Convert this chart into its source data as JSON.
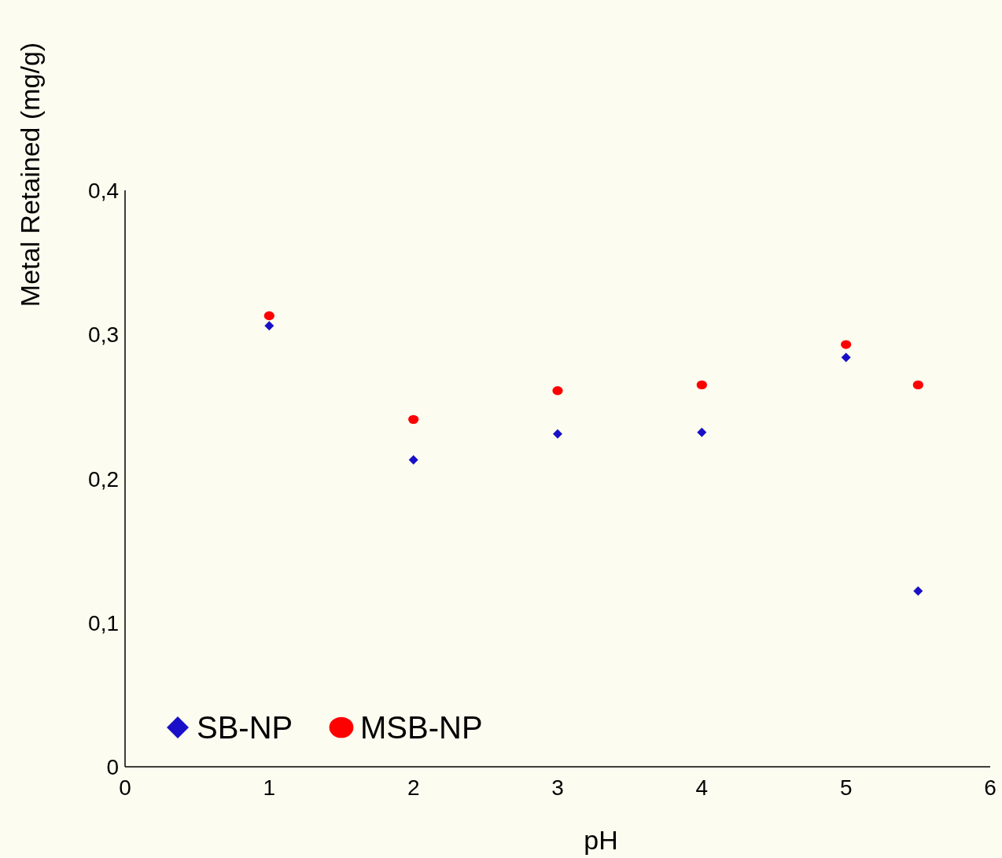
{
  "chart_data": {
    "type": "scatter",
    "xlabel": "pH",
    "ylabel": "Metal Retained (mg/g)",
    "xlim": [
      0,
      6
    ],
    "xticks": [
      0,
      1,
      2,
      3,
      4,
      5,
      6
    ],
    "ylim": [
      0,
      0.4
    ],
    "yticks": [
      0,
      {
        "value": 0.1,
        "label": "0,1"
      },
      {
        "value": 0.2,
        "label": "0,2"
      },
      {
        "value": 0.3,
        "label": "0,3"
      },
      {
        "value": 0.4,
        "label": "0,4"
      }
    ],
    "grid": false,
    "legend": "bottom left",
    "series": [
      {
        "name": "SB-NP",
        "color": "#1a0fc8",
        "marker": "diamond",
        "x": [
          1,
          2,
          3,
          4,
          5,
          5.5
        ],
        "values": [
          0.306,
          0.213,
          0.231,
          0.232,
          0.284,
          0.122
        ]
      },
      {
        "name": "MSB-NP",
        "color": "#ff0000",
        "marker": "circle",
        "x": [
          1,
          2,
          3,
          4,
          5,
          5.5
        ],
        "values": [
          0.313,
          0.241,
          0.261,
          0.265,
          0.293,
          0.265
        ]
      }
    ]
  }
}
